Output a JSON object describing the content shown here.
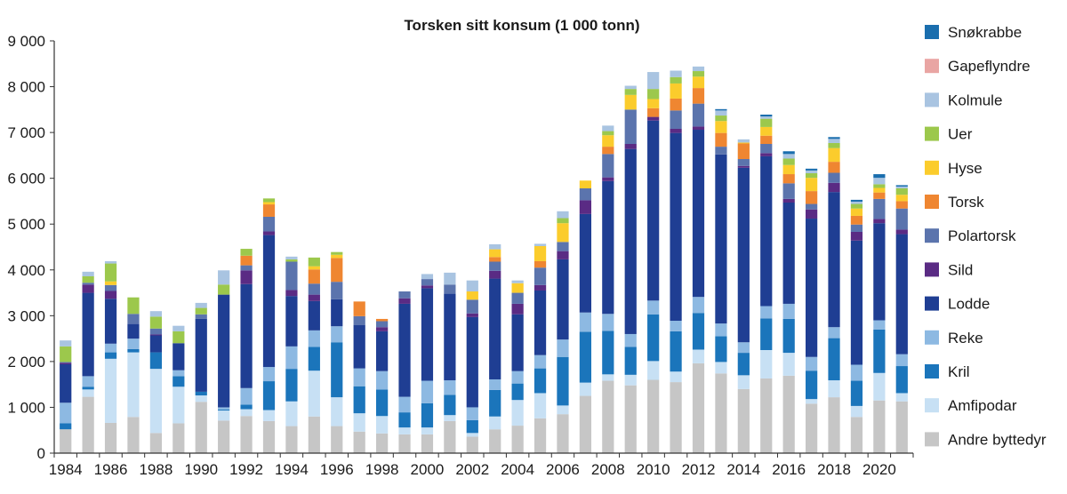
{
  "chart_data": {
    "type": "bar",
    "stacked": true,
    "title": "Torsken sitt konsum (1 000 tonn)",
    "ylim": [
      0,
      9000
    ],
    "yticks": [
      0,
      1000,
      2000,
      3000,
      4000,
      5000,
      6000,
      7000,
      8000,
      9000
    ],
    "ytick_labels": [
      "0",
      "1 000",
      "2 000",
      "3 000",
      "4 000",
      "5 000",
      "6 000",
      "7 000",
      "8 000",
      "9 000"
    ],
    "xtick_labels": [
      "1984",
      "1986",
      "1988",
      "1990",
      "1992",
      "1994",
      "1996",
      "1998",
      "2000",
      "2002",
      "2004",
      "2006",
      "2008",
      "2010",
      "2012",
      "2014",
      "2016",
      "2018",
      "2020"
    ],
    "categories": [
      "1984",
      "1985",
      "1986",
      "1987",
      "1988",
      "1989",
      "1990",
      "1991",
      "1992",
      "1993",
      "1994",
      "1995",
      "1996",
      "1997",
      "1998",
      "1999",
      "2000",
      "2001",
      "2002",
      "2003",
      "2004",
      "2005",
      "2006",
      "2007",
      "2008",
      "2009",
      "2010",
      "2011",
      "2012",
      "2013",
      "2014",
      "2015",
      "2016",
      "2017",
      "2018",
      "2019",
      "2020",
      "2021"
    ],
    "grid": false,
    "legend_position": "right",
    "series": [
      {
        "name": "Andre byttedyr",
        "color": "#c6c6c6",
        "values": [
          520,
          1230,
          660,
          790,
          440,
          650,
          1120,
          710,
          810,
          700,
          590,
          800,
          590,
          470,
          430,
          410,
          410,
          700,
          360,
          520,
          600,
          760,
          850,
          1250,
          1580,
          1480,
          1600,
          1550,
          1960,
          1740,
          1400,
          1630,
          1690,
          1080,
          1220,
          790,
          1150,
          1130
        ]
      },
      {
        "name": "Amfipodar",
        "color": "#c7e0f4",
        "values": [
          0,
          160,
          1400,
          1410,
          1400,
          800,
          140,
          220,
          150,
          240,
          540,
          1000,
          630,
          400,
          380,
          150,
          150,
          130,
          80,
          280,
          560,
          550,
          190,
          290,
          140,
          230,
          410,
          230,
          300,
          250,
          300,
          620,
          500,
          100,
          370,
          240,
          600,
          180
        ]
      },
      {
        "name": "Kril",
        "color": "#1b75bb",
        "values": [
          130,
          60,
          140,
          70,
          360,
          230,
          80,
          20,
          100,
          630,
          710,
          520,
          1200,
          590,
          580,
          330,
          530,
          440,
          280,
          580,
          360,
          540,
          1060,
          1110,
          950,
          610,
          1020,
          880,
          800,
          560,
          490,
          690,
          740,
          620,
          920,
          550,
          950,
          590
        ]
      },
      {
        "name": "Reke",
        "color": "#8db9e2",
        "values": [
          450,
          230,
          190,
          230,
          0,
          130,
          0,
          50,
          360,
          310,
          490,
          360,
          350,
          390,
          400,
          340,
          490,
          320,
          280,
          230,
          270,
          290,
          380,
          420,
          370,
          280,
          300,
          230,
          350,
          280,
          230,
          270,
          330,
          300,
          240,
          350,
          200,
          260
        ]
      },
      {
        "name": "Lodde",
        "color": "#1f3e93",
        "values": [
          840,
          1820,
          980,
          320,
          370,
          590,
          1590,
          2460,
          2270,
          2880,
          1100,
          640,
          590,
          950,
          870,
          2030,
          2020,
          1890,
          1970,
          2200,
          1240,
          1410,
          1750,
          2150,
          2900,
          4040,
          3930,
          4100,
          3650,
          3690,
          3810,
          3270,
          2210,
          3020,
          2950,
          2710,
          2120,
          2620
        ]
      },
      {
        "name": "Sild",
        "color": "#5a2b84",
        "values": [
          30,
          180,
          170,
          0,
          20,
          0,
          0,
          0,
          300,
          80,
          130,
          140,
          0,
          0,
          90,
          120,
          60,
          0,
          80,
          170,
          230,
          120,
          180,
          300,
          80,
          110,
          80,
          90,
          70,
          0,
          40,
          70,
          80,
          200,
          200,
          190,
          90,
          100
        ]
      },
      {
        "name": "Polartorsk",
        "color": "#5b74ad",
        "values": [
          20,
          40,
          130,
          220,
          130,
          0,
          100,
          0,
          110,
          320,
          620,
          240,
          380,
          190,
          130,
          150,
          140,
          200,
          300,
          200,
          240,
          380,
          200,
          260,
          510,
          750,
          0,
          400,
          500,
          170,
          150,
          200,
          340,
          120,
          220,
          160,
          440,
          460
        ]
      },
      {
        "name": "Torsk",
        "color": "#ef8631",
        "values": [
          0,
          0,
          0,
          0,
          0,
          0,
          0,
          0,
          210,
          270,
          0,
          310,
          520,
          320,
          50,
          0,
          0,
          0,
          0,
          100,
          0,
          140,
          0,
          0,
          160,
          0,
          190,
          260,
          340,
          300,
          340,
          180,
          200,
          280,
          240,
          190,
          140,
          160
        ]
      },
      {
        "name": "Hyse",
        "color": "#fbcc2c",
        "values": [
          0,
          0,
          80,
          0,
          0,
          0,
          0,
          0,
          0,
          50,
          0,
          70,
          70,
          0,
          0,
          0,
          0,
          0,
          180,
          170,
          210,
          330,
          410,
          170,
          250,
          320,
          200,
          330,
          250,
          260,
          20,
          190,
          200,
          290,
          300,
          160,
          100,
          140
        ]
      },
      {
        "name": "Uer",
        "color": "#9cc84c",
        "values": [
          340,
          140,
          390,
          360,
          260,
          260,
          140,
          220,
          150,
          80,
          50,
          190,
          60,
          0,
          0,
          0,
          0,
          0,
          0,
          0,
          0,
          0,
          110,
          0,
          90,
          130,
          220,
          140,
          120,
          120,
          0,
          180,
          140,
          100,
          110,
          100,
          80,
          140
        ]
      },
      {
        "name": "Kolmule",
        "color": "#a9c4e1",
        "values": [
          130,
          100,
          50,
          0,
          120,
          120,
          110,
          310,
          0,
          0,
          60,
          0,
          0,
          0,
          0,
          0,
          110,
          260,
          240,
          110,
          60,
          50,
          150,
          0,
          120,
          70,
          370,
          140,
          100,
          110,
          70,
          50,
          100,
          60,
          90,
          50,
          140,
          40
        ]
      },
      {
        "name": "Gapeflyndre",
        "color": "#e9a5a3",
        "values": [
          0,
          0,
          0,
          0,
          0,
          0,
          0,
          0,
          0,
          0,
          0,
          0,
          0,
          0,
          0,
          0,
          0,
          0,
          0,
          0,
          0,
          0,
          0,
          0,
          0,
          0,
          0,
          0,
          0,
          0,
          0,
          0,
          0,
          0,
          0,
          0,
          0,
          0
        ]
      },
      {
        "name": "Snøkrabbe",
        "color": "#1a6eae",
        "values": [
          0,
          0,
          0,
          0,
          0,
          0,
          0,
          0,
          0,
          0,
          0,
          0,
          0,
          0,
          0,
          0,
          0,
          0,
          0,
          0,
          0,
          0,
          0,
          0,
          0,
          0,
          0,
          0,
          0,
          30,
          0,
          40,
          60,
          40,
          40,
          40,
          80,
          30
        ]
      }
    ]
  }
}
